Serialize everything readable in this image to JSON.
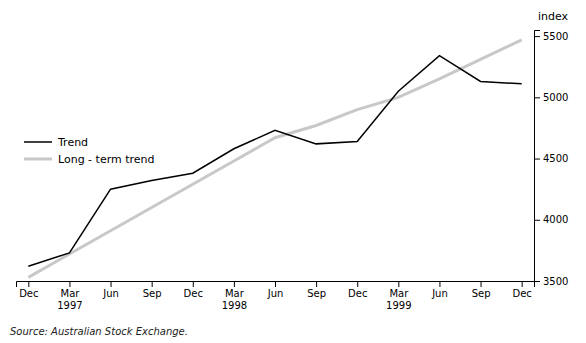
{
  "chart_data": {
    "type": "line",
    "ylabel": "index",
    "source": "Source: Australian Stock Exchange.",
    "categories": [
      "Dec",
      "Mar\n1997",
      "Jun",
      "Sep",
      "Dec",
      "Mar\n1998",
      "Jun",
      "Sep",
      "Dec",
      "Mar\n1999",
      "Jun",
      "Sep",
      "Dec"
    ],
    "series": [
      {
        "name": "Trend",
        "color": "#000000",
        "values": [
          3620,
          3730,
          4250,
          4320,
          4380,
          4580,
          4730,
          4620,
          4640,
          5050,
          5340,
          5130,
          5110
        ]
      },
      {
        "name": "Long - term trend",
        "color": "#c8c8c8",
        "values": [
          3530,
          3720,
          3910,
          4100,
          4290,
          4480,
          4670,
          4770,
          4900,
          5000,
          5150,
          5310,
          5470
        ]
      }
    ],
    "ylim": [
      3500,
      5550
    ],
    "yticks": [
      3500,
      4000,
      4500,
      5000,
      5500
    ],
    "grid": false,
    "legend": "left"
  }
}
